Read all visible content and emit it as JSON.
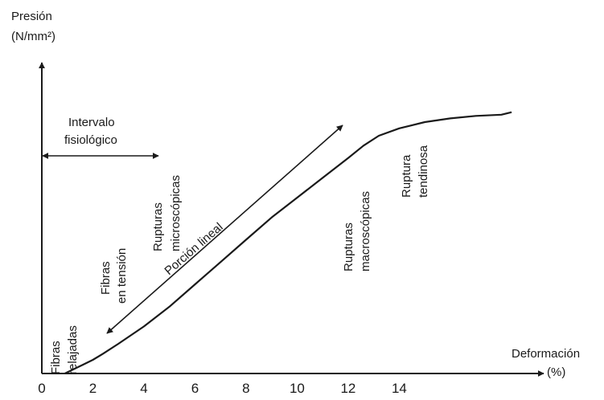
{
  "chart_data": {
    "type": "line",
    "ylabel_line1": "Presión",
    "ylabel_line2": "(N/mm²)",
    "xlabel_line1": "Deformación",
    "xlabel_line2": "(%)",
    "xlim": [
      0,
      19.5
    ],
    "ylim": [
      0,
      12
    ],
    "x_ticks": [
      "0",
      "2",
      "4",
      "6",
      "8",
      "10",
      "12",
      "14"
    ],
    "x_tick_values": [
      0,
      2,
      4,
      6,
      8,
      10,
      12,
      14
    ],
    "series": [
      {
        "x": [
          0.9,
          1.2,
          1.6,
          2.0,
          2.4,
          3.0,
          4.0,
          5.0,
          6.0,
          7.0,
          8.0,
          9.0,
          10.0,
          11.0,
          12.0,
          12.6,
          13.2,
          14.0,
          15.0,
          16.0,
          17.0,
          18.0,
          18.4
        ],
        "y": [
          0.0,
          0.15,
          0.35,
          0.55,
          0.8,
          1.2,
          1.9,
          2.7,
          3.6,
          4.5,
          5.4,
          6.3,
          7.1,
          7.9,
          8.7,
          9.2,
          9.6,
          9.9,
          10.15,
          10.3,
          10.4,
          10.45,
          10.55
        ]
      }
    ],
    "annotations": {
      "intervalo_line1": "Intervalo",
      "intervalo_line2": "fisiológico",
      "fibras_relajadas_line1": "Fibras",
      "fibras_relajadas_line2": "relajadas",
      "fibras_tension_line1": "Fibras",
      "fibras_tension_line2": "en tensión",
      "rupturas_micro_line1": "Rupturas",
      "rupturas_micro_line2": "microscópicas",
      "porcion_lineal": "Porción lineal",
      "rupturas_macro_line1": "Rupturas",
      "rupturas_macro_line2": "macroscópicas",
      "ruptura_tendinosa_line1": "Ruptura",
      "ruptura_tendinosa_line2": "tendinosa"
    },
    "grid": false,
    "legend": "none"
  }
}
